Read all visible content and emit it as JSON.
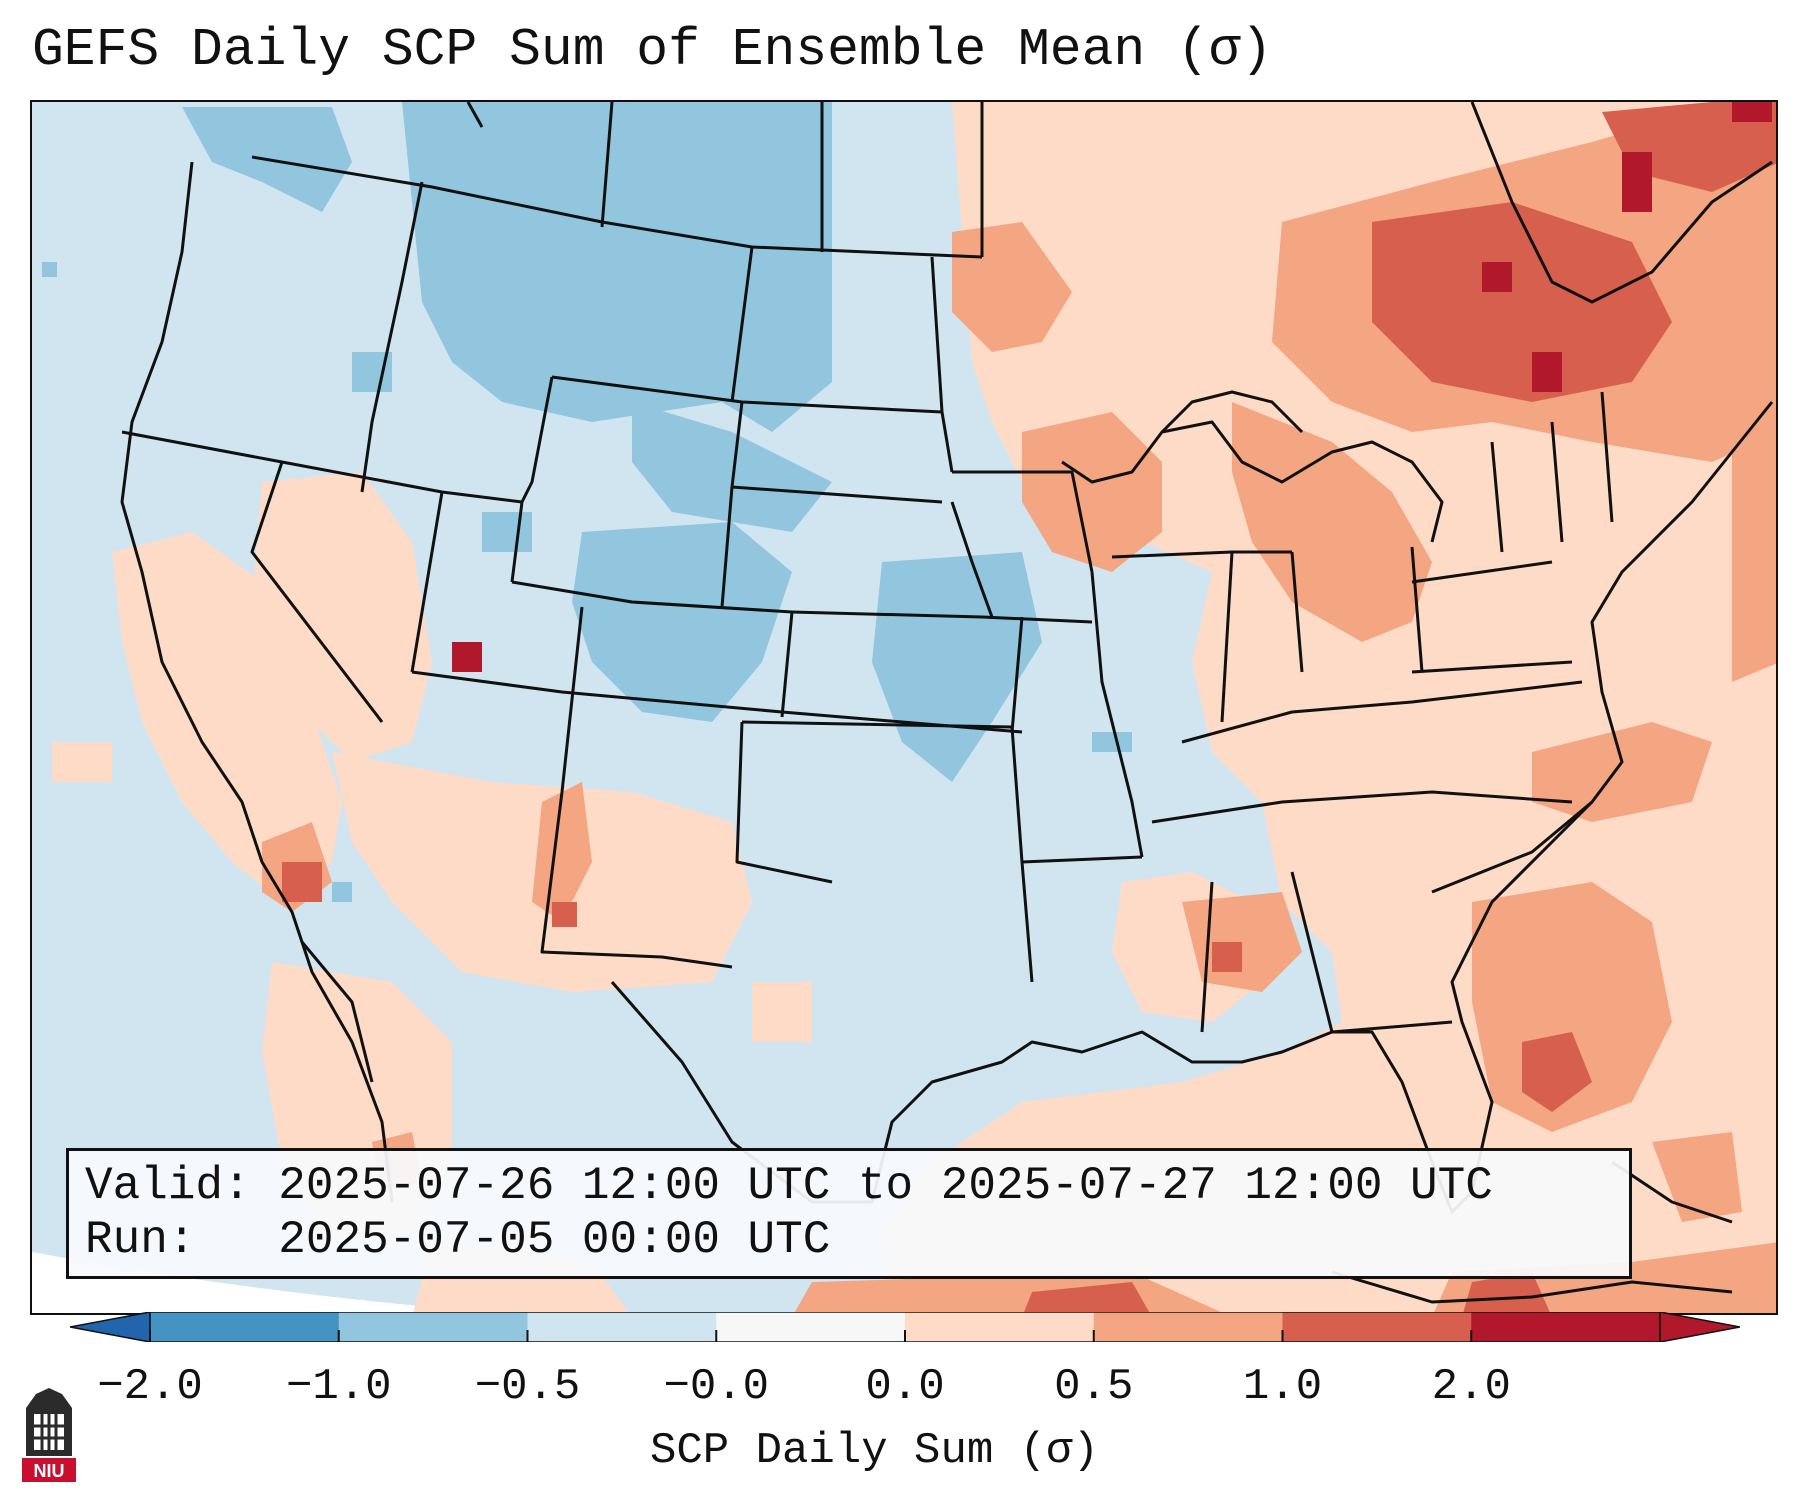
{
  "title": "GEFS Daily SCP Sum of Ensemble Mean (σ)",
  "info": {
    "valid_label": "Valid:",
    "valid_value": "2025-07-26 12:00 UTC to 2025-07-27 12:00 UTC",
    "run_label": "Run:",
    "run_value": "2025-07-05 00:00 UTC"
  },
  "colorbar": {
    "label": "SCP Daily Sum (σ)",
    "ticks": [
      "−2.0",
      "−1.0",
      "−0.5",
      "−0.0",
      "0.0",
      "0.5",
      "1.0",
      "2.0"
    ],
    "colors": [
      "#4393c3",
      "#92c5de",
      "#d1e5f0",
      "#f7f7f7",
      "#fddbc7",
      "#f4a582",
      "#d6604d",
      "#b2182b"
    ],
    "extend": "both"
  },
  "colors": {
    "land_background": "#d1e5f0",
    "moderate_negative": "#92c5de",
    "slight_positive": "#fddbc7",
    "moderate_positive": "#f4a582",
    "strong_positive": "#d6604d",
    "extreme_positive": "#b2182b"
  },
  "logo": {
    "text": "NIU"
  }
}
